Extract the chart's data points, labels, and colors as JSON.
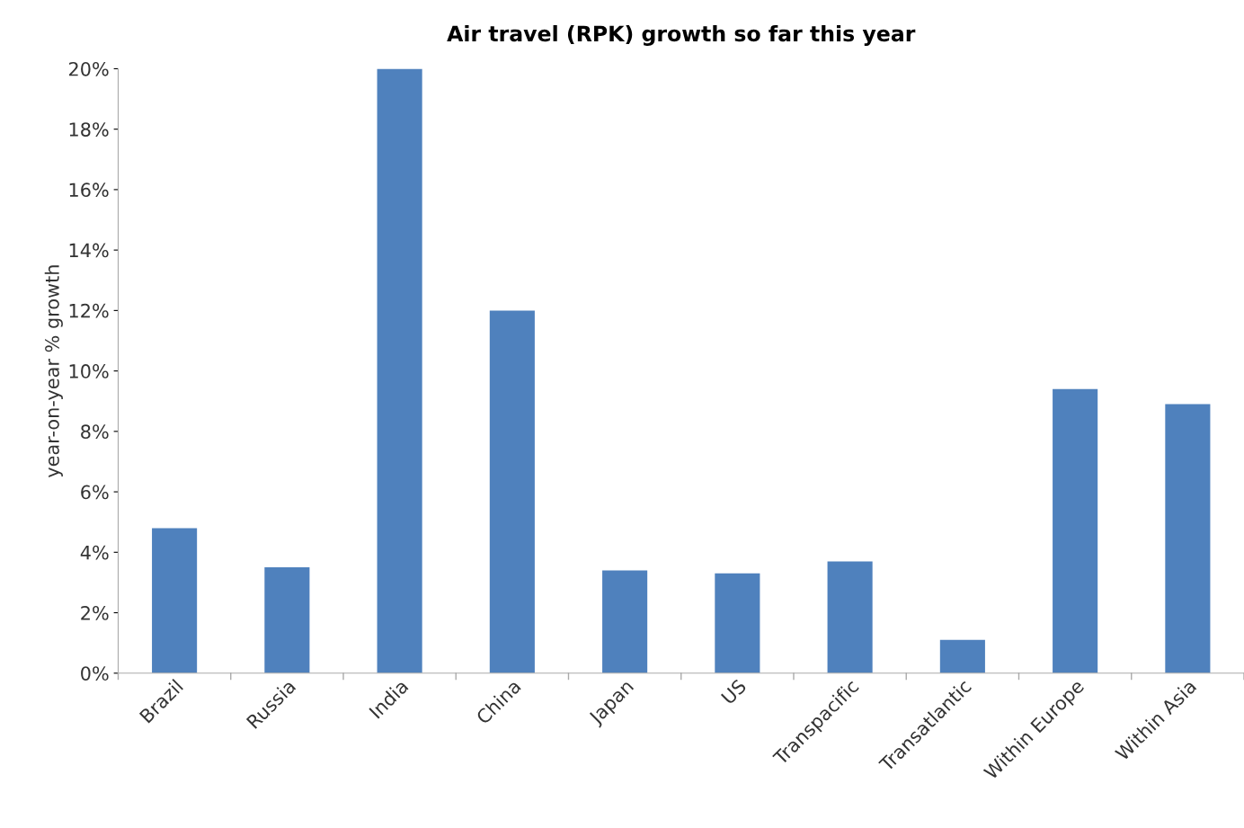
{
  "chart_data": {
    "type": "bar",
    "title": "Air travel (RPK) growth so far this year",
    "ylabel": "year-on-year % growth",
    "categories": [
      "Brazil",
      "Russia",
      "India",
      "China",
      "Japan",
      "US",
      "Transpacific",
      "Transatlantic",
      "Within Europe",
      "Within Asia"
    ],
    "values": [
      4.8,
      3.5,
      20,
      12,
      3.4,
      3.3,
      3.7,
      1.1,
      9.4,
      8.9
    ],
    "color": "#4f81bd",
    "ylim": [
      0,
      20
    ],
    "yticks": [
      {
        "value": 0,
        "label": "0%"
      },
      {
        "value": 2,
        "label": "2%"
      },
      {
        "value": 4,
        "label": "4%"
      },
      {
        "value": 6,
        "label": "6%"
      },
      {
        "value": 8,
        "label": "8%"
      },
      {
        "value": 10,
        "label": "10%"
      },
      {
        "value": 12,
        "label": "12%"
      },
      {
        "value": 14,
        "label": "14%"
      },
      {
        "value": 16,
        "label": "16%"
      },
      {
        "value": 18,
        "label": "18%"
      },
      {
        "value": 20,
        "label": "20%"
      }
    ],
    "grid": false,
    "legend": false
  }
}
